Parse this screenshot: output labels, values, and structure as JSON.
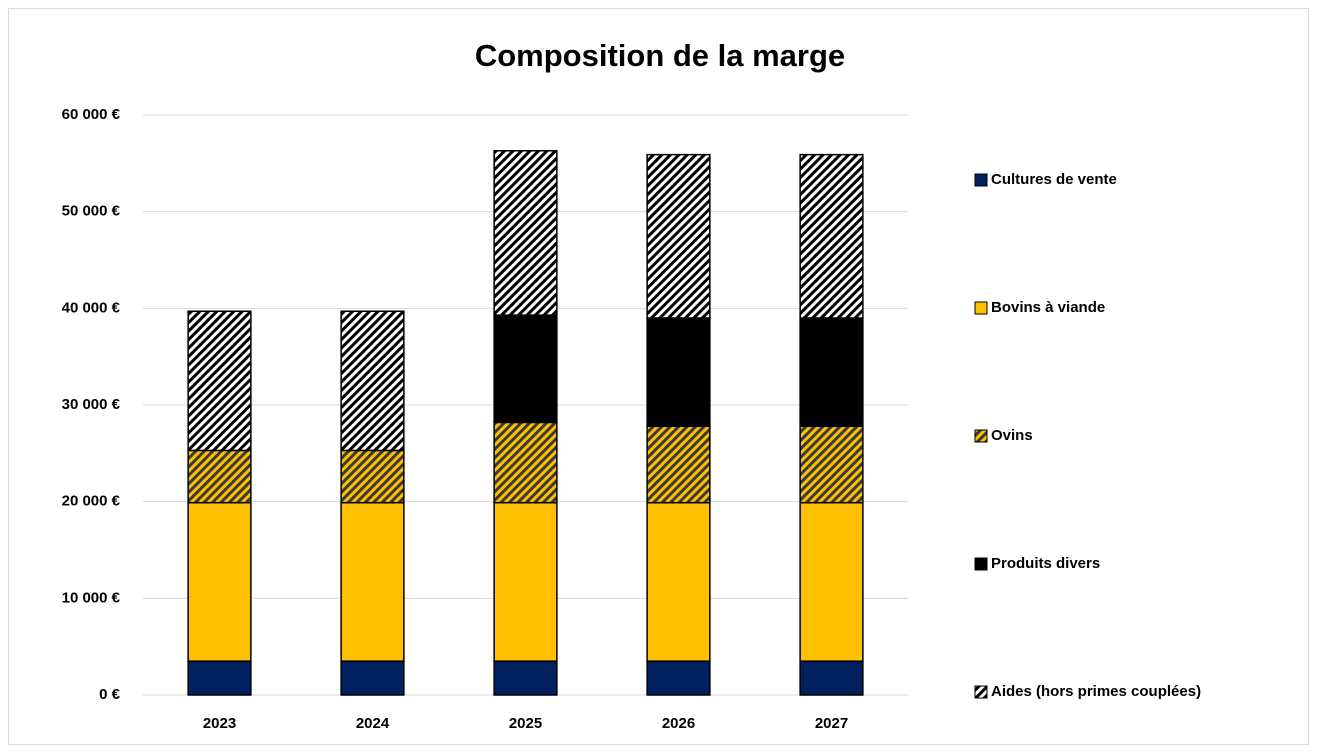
{
  "chart_data": {
    "type": "stacked_bar",
    "title": "Composition de la marge",
    "categories": [
      "2023",
      "2024",
      "2025",
      "2026",
      "2027"
    ],
    "series": [
      {
        "name": "Cultures de vente",
        "color": "#002060",
        "values": [
          3500,
          3500,
          3500,
          3500,
          3500
        ]
      },
      {
        "name": "Bovins à viande",
        "color": "#ffc000",
        "values": [
          16400,
          16400,
          16400,
          16400,
          16400
        ]
      },
      {
        "name": "Ovins",
        "color": "#ffc000",
        "hatch": "#3a3a3a",
        "values": [
          5400,
          5400,
          8300,
          7900,
          7900
        ]
      },
      {
        "name": "Produits divers",
        "color": "#000000",
        "values": [
          0,
          0,
          11100,
          11200,
          11200
        ]
      },
      {
        "name": "Aides (hors primes couplées)",
        "color": "#ffffff",
        "hatch": "#000000",
        "values": [
          14400,
          14400,
          17000,
          16900,
          16900
        ]
      }
    ],
    "ylim": [
      0,
      60000
    ],
    "yticks": [
      {
        "value": 0,
        "label": "0 €"
      },
      {
        "value": 10000,
        "label": "10 000 €"
      },
      {
        "value": 20000,
        "label": "20 000 €"
      },
      {
        "value": 30000,
        "label": "30 000 €"
      },
      {
        "value": 40000,
        "label": "40 000 €"
      },
      {
        "value": 50000,
        "label": "50 000 €"
      },
      {
        "value": 60000,
        "label": "60 000 €"
      }
    ],
    "grid": true,
    "legend": "right"
  }
}
